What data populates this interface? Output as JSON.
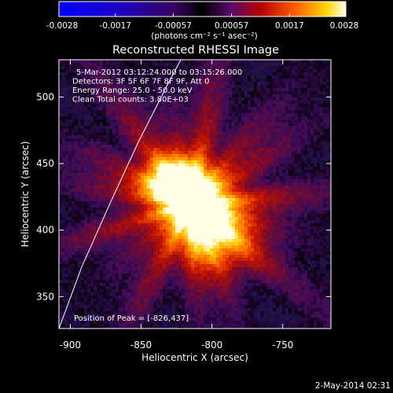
{
  "colorbar": {
    "ticks": [
      -0.0028,
      -0.0017,
      -0.00057,
      0.00057,
      0.0017,
      0.0028
    ],
    "tick_labels": [
      "-0.0028",
      "-0.0017",
      "-0.00057",
      "0.00057",
      "0.0017",
      "0.0028"
    ],
    "unit_label": "(photons cm⁻² s⁻¹ asec⁻²)",
    "range": [
      -0.0028,
      0.0028
    ]
  },
  "chart_data": {
    "type": "heatmap",
    "title": "Reconstructed RHESSI Image",
    "xlabel": "Heliocentric X (arcsec)",
    "ylabel": "Heliocentric Y (arcsec)",
    "xlim": [
      -908,
      -716
    ],
    "ylim": [
      326,
      528
    ],
    "x_ticks": [
      -900,
      -850,
      -800,
      -750
    ],
    "x_tick_labels": [
      "-900",
      "-850",
      "-800",
      "-750"
    ],
    "y_ticks": [
      350,
      400,
      450,
      500
    ],
    "y_tick_labels": [
      "350",
      "400",
      "450",
      "500"
    ],
    "colormap": "heat (black-purple-red-orange-yellow-white)",
    "sources": [
      {
        "x": -826,
        "y": 437,
        "peak": 0.0028
      },
      {
        "x": -810,
        "y": 415,
        "peak": 0.0022
      },
      {
        "x": -795,
        "y": 392,
        "peak": 0.0014
      }
    ],
    "limb_curve": [
      {
        "x": -908,
        "y": 326
      },
      {
        "x": -892,
        "y": 372
      },
      {
        "x": -872,
        "y": 420
      },
      {
        "x": -852,
        "y": 466
      },
      {
        "x": -832,
        "y": 508
      },
      {
        "x": -822,
        "y": 528
      }
    ],
    "annotations": [
      "5-Mar-2012 03:12:24.000 to 03:15:26.000",
      "Detectors: 3F 5F 6F 7F 8F 9F, Att 0",
      "Energy Range: 25.0 - 50.0 keV",
      "Clean     Total counts: 3.80E+03"
    ],
    "peak_label": "Position of Peak = [-826,437]"
  },
  "footer": {
    "timestamp": "2-May-2014 02:31"
  }
}
